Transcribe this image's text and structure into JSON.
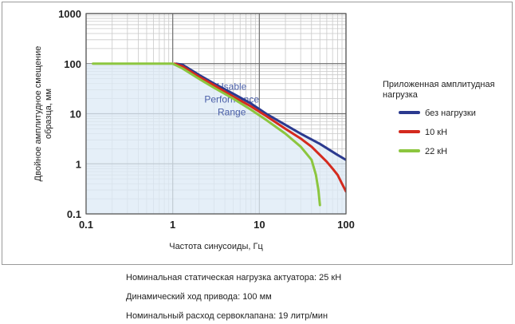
{
  "chart_data": {
    "type": "line",
    "xscale": "log",
    "yscale": "log",
    "xlim": [
      0.1,
      100
    ],
    "ylim": [
      0.1,
      1000
    ],
    "grid": true,
    "xlabel": "Частота синусоиды, Гц",
    "ylabel_lines": [
      "Двойное амплитудное смещение",
      "образца, мм"
    ],
    "x_ticks": [
      0.1,
      1,
      10,
      100
    ],
    "x_tick_labels": [
      "0.1",
      "1",
      "10",
      "100"
    ],
    "y_ticks": [
      0.1,
      1,
      10,
      100,
      1000
    ],
    "y_tick_labels": [
      "0.1",
      "1",
      "10",
      "100",
      "1000"
    ],
    "annotation_lines": [
      "Usable",
      "Performance",
      "Range"
    ],
    "legend_title_lines": [
      "Приложенная амплитудная",
      "нагрузка"
    ],
    "legend_position": "right",
    "series": [
      {
        "name": "без нагрузки",
        "color": "#2b3a8f",
        "points": [
          [
            1.1,
            100
          ],
          [
            1.3,
            95
          ],
          [
            2,
            60
          ],
          [
            3,
            40
          ],
          [
            5,
            25
          ],
          [
            8,
            16
          ],
          [
            12,
            10
          ],
          [
            20,
            6
          ],
          [
            30,
            4
          ],
          [
            50,
            2.5
          ],
          [
            80,
            1.5
          ],
          [
            100,
            1.2
          ]
        ]
      },
      {
        "name": "10 кН",
        "color": "#d42a1e",
        "points": [
          [
            1.05,
            100
          ],
          [
            1.3,
            88
          ],
          [
            2,
            55
          ],
          [
            3,
            37
          ],
          [
            5,
            22
          ],
          [
            8,
            14
          ],
          [
            12,
            9
          ],
          [
            20,
            5
          ],
          [
            30,
            3.2
          ],
          [
            40,
            2.2
          ],
          [
            50,
            1.5
          ],
          [
            60,
            1.1
          ],
          [
            70,
            0.8
          ],
          [
            80,
            0.6
          ],
          [
            90,
            0.4
          ],
          [
            100,
            0.28
          ]
        ]
      },
      {
        "name": "22 кН",
        "color": "#8cc63f",
        "points": [
          [
            0.12,
            100
          ],
          [
            1,
            100
          ],
          [
            1.3,
            80
          ],
          [
            2,
            50
          ],
          [
            3,
            33
          ],
          [
            5,
            20
          ],
          [
            8,
            12
          ],
          [
            12,
            7.5
          ],
          [
            20,
            4
          ],
          [
            30,
            2.2
          ],
          [
            40,
            1.2
          ],
          [
            45,
            0.6
          ],
          [
            48,
            0.3
          ],
          [
            50,
            0.15
          ]
        ]
      }
    ]
  },
  "captions": [
    "Номинальная статическая нагрузка актуатора: 25 кН",
    "Динамический ход привода: 100 мм",
    "Номинальный расход сервоклапана: 19 литр/мин"
  ]
}
